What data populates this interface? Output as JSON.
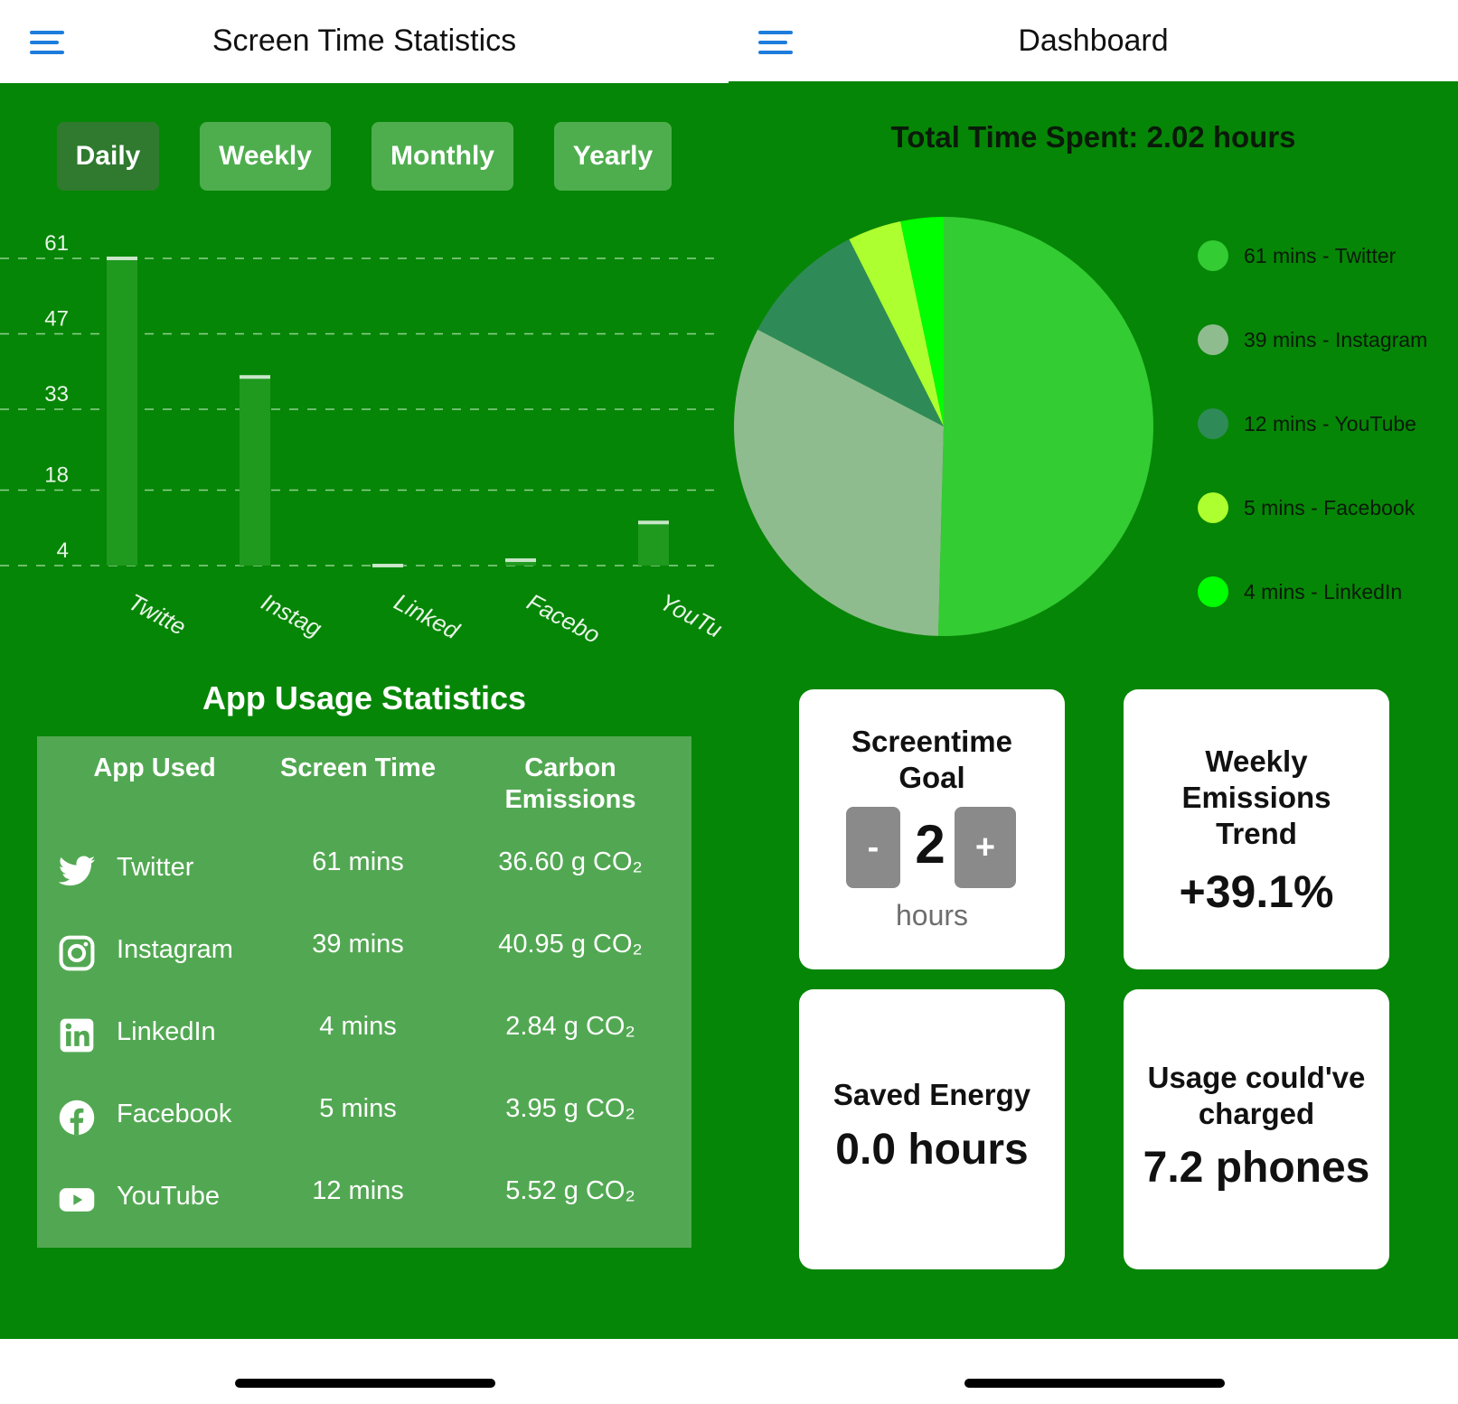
{
  "left": {
    "title": "Screen Time Statistics",
    "periods": [
      "Daily",
      "Weekly",
      "Monthly",
      "Yearly"
    ],
    "active_period": "Daily",
    "table_title": "App Usage Statistics",
    "table_headers": [
      "App Used",
      "Screen Time",
      "Carbon\nEmissions"
    ],
    "rows": [
      {
        "icon": "twitter-icon",
        "app": "Twitter",
        "time": "61 mins",
        "co2": "36.60 g CO₂"
      },
      {
        "icon": "instagram-icon",
        "app": "Instagram",
        "time": "39 mins",
        "co2": "40.95 g CO₂"
      },
      {
        "icon": "linkedin-icon",
        "app": "LinkedIn",
        "time": "4 mins",
        "co2": "2.84 g CO₂"
      },
      {
        "icon": "facebook-icon",
        "app": "Facebook",
        "time": "5 mins",
        "co2": "3.95 g CO₂"
      },
      {
        "icon": "youtube-icon",
        "app": "YouTube",
        "time": "12 mins",
        "co2": "5.52 g CO₂"
      }
    ]
  },
  "right": {
    "title": "Dashboard",
    "total": "Total Time Spent: 2.02 hours",
    "cards": {
      "goal_title": "Screentime\nGoal",
      "goal_value": "2",
      "goal_minus": "-",
      "goal_plus": "+",
      "goal_unit": "hours",
      "trend_title": "Weekly\nEmissions\nTrend",
      "trend_value": "+39.1%",
      "saved_title": "Saved Energy",
      "saved_value": "0.0 hours",
      "charge_title": "Usage could've\ncharged",
      "charge_value": "7.2 phones"
    }
  },
  "colors": {
    "background_green": "#068606",
    "button": "#4eae4e",
    "button_active": "#2f7a2f",
    "table_bg": "#52a852",
    "menu_blue": "#1e7ddc"
  },
  "chart_data": [
    {
      "type": "bar",
      "categories": [
        "Twitter",
        "Instagram",
        "LinkedIn",
        "Facebook",
        "YouTube"
      ],
      "tick_labels": [
        "Twitte",
        "Instag",
        "Linked",
        "Facebo",
        "YouTu"
      ],
      "values": [
        61,
        39,
        4,
        5,
        12
      ],
      "ytick_labels": [
        "61",
        "47",
        "33",
        "18",
        "4"
      ],
      "ylim": [
        4,
        61
      ],
      "grid": true,
      "colors": {
        "bar": "#1f9a1f",
        "bar_cap": "#c8e6c8",
        "grid": "#8fd08f",
        "text": "#e8f5e8"
      }
    },
    {
      "type": "pie",
      "labels": [
        "Twitter",
        "Instagram",
        "YouTube",
        "Facebook",
        "LinkedIn"
      ],
      "values": [
        61,
        39,
        12,
        5,
        4
      ],
      "legend": [
        "61 mins - Twitter",
        "39 mins - Instagram",
        "12 mins - YouTube",
        "5 mins - Facebook",
        "4 mins - LinkedIn"
      ],
      "colors": [
        "#33cc33",
        "#8fbc8f",
        "#2e8b57",
        "#adff2f",
        "#00ff00"
      ],
      "legend_position": "right"
    }
  ]
}
